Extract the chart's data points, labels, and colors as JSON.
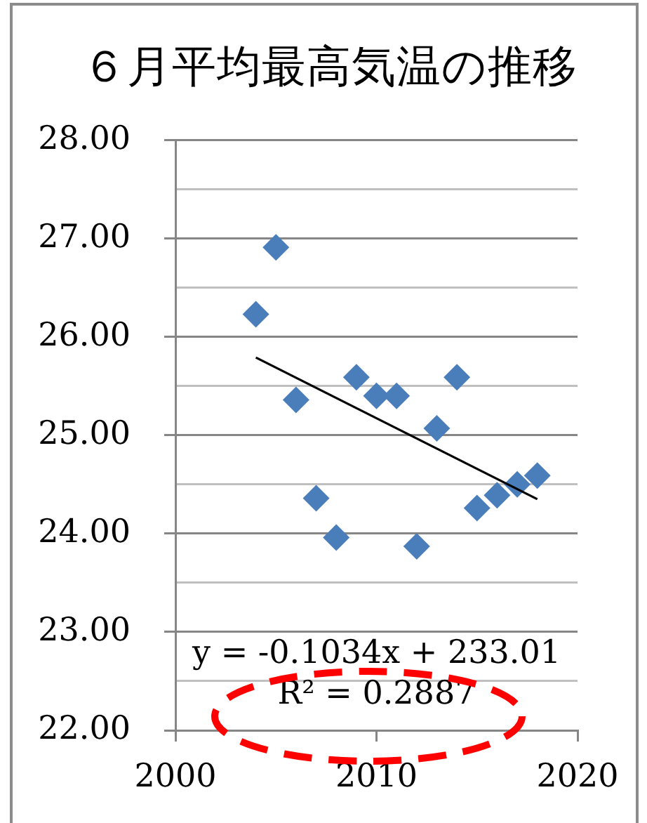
{
  "chart_data": {
    "type": "scatter",
    "title": "６月平均最高気温の推移",
    "x": [
      2004,
      2005,
      2006,
      2007,
      2008,
      2009,
      2010,
      2011,
      2012,
      2013,
      2014,
      2015,
      2016,
      2017,
      2018
    ],
    "series": [
      {
        "color": "#4a7ebb",
        "values": [
          26.23,
          26.91,
          25.36,
          24.36,
          23.96,
          25.59,
          25.4,
          25.4,
          23.87,
          25.07,
          25.59,
          24.26,
          24.39,
          24.5,
          24.59
        ]
      },
      {
        "type": "line",
        "color": "#000000",
        "marker": "none",
        "x": [
          2004,
          2018
        ],
        "values": [
          25.79,
          24.35
        ]
      }
    ],
    "xlim": [
      2000,
      2020
    ],
    "xticks": [
      2000,
      2010,
      2020
    ],
    "ylim": [
      22,
      28
    ],
    "yticks": [
      {
        "value": 22,
        "label": "22.00"
      },
      {
        "value": 22.5,
        "label": null
      },
      {
        "value": 23,
        "label": "23.00"
      },
      {
        "value": 23.5,
        "label": null
      },
      {
        "value": 24,
        "label": "24.00"
      },
      {
        "value": 24.5,
        "label": null
      },
      {
        "value": 25,
        "label": "25.00"
      },
      {
        "value": 25.5,
        "label": null
      },
      {
        "value": 26,
        "label": "26.00"
      },
      {
        "value": 26.5,
        "label": null
      },
      {
        "value": 27,
        "label": "27.00"
      },
      {
        "value": 27.5,
        "label": null
      },
      {
        "value": 28,
        "label": "28.00"
      }
    ],
    "annotations": [
      "y = -0.1034x + 233.01",
      "R² = 0.2887"
    ],
    "grid": "y",
    "legend": false,
    "marker": "diamond"
  }
}
